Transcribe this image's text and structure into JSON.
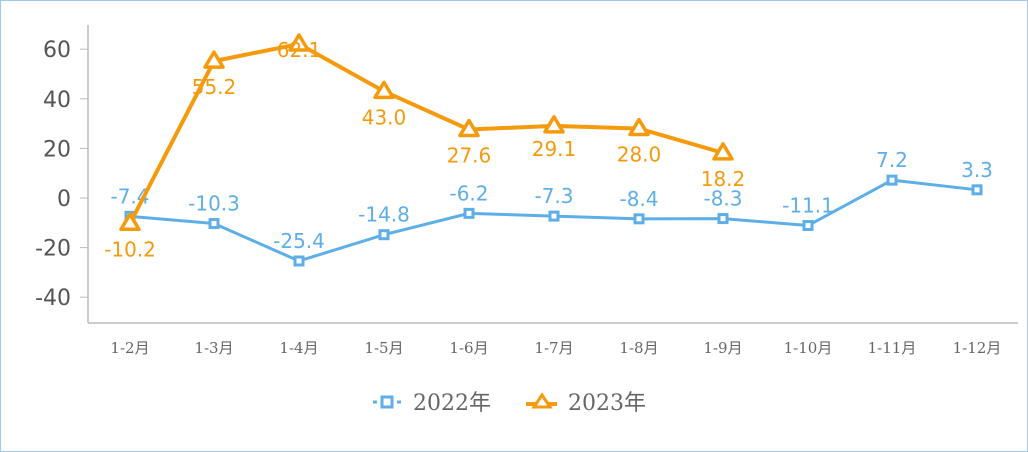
{
  "chart_data": {
    "type": "line",
    "title": "",
    "xlabel": "",
    "ylabel": "",
    "ylim": [
      -50,
      70
    ],
    "yticks": [
      60,
      40,
      20,
      0,
      -20,
      -40
    ],
    "grid": false,
    "legend_position": "bottom",
    "categories": [
      "1-2月",
      "1-3月",
      "1-4月",
      "1-5月",
      "1-6月",
      "1-7月",
      "1-8月",
      "1-9月",
      "1-10月",
      "1-11月",
      "1-12月"
    ],
    "series": [
      {
        "name": "2022年",
        "color": "#5eaee8",
        "marker": "square",
        "values": [
          -7.4,
          -10.3,
          -25.4,
          -14.8,
          -6.2,
          -7.3,
          -8.4,
          -8.3,
          -11.1,
          7.2,
          3.3
        ]
      },
      {
        "name": "2023年",
        "color": "#f59a0c",
        "marker": "triangle",
        "values": [
          -10.2,
          55.2,
          62.1,
          43.0,
          27.6,
          29.1,
          28.0,
          18.2,
          null,
          null,
          null
        ]
      }
    ]
  },
  "legend": {
    "s1": "2022年",
    "s2": "2023年"
  }
}
